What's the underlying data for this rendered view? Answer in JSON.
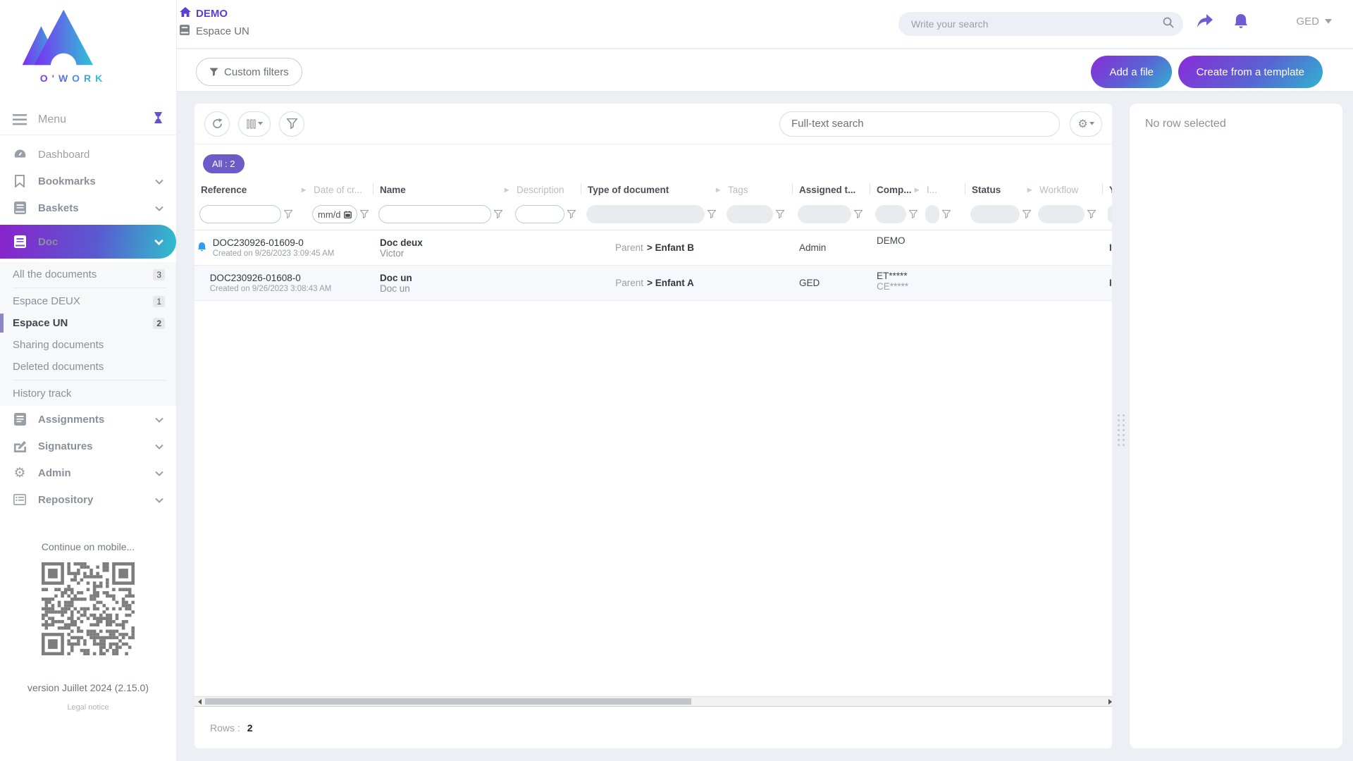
{
  "colors": {
    "accent_purple": "#6c5dd3",
    "breadcrumb_purple": "#5b3fd0",
    "gradient_start": "#8a2bd8",
    "gradient_end": "#2fb3cf",
    "badge_purple": "#6d5bc7",
    "word_icon_blue": "#2e6fd2",
    "row_bell_blue": "#2e9df2",
    "pdf_icon_red": "#e8222d"
  },
  "app": {
    "logo_text": "O'WORK"
  },
  "sidebar": {
    "menu_label": "Menu",
    "items": [
      {
        "label": "Dashboard"
      },
      {
        "label": "Bookmarks"
      },
      {
        "label": "Baskets"
      },
      {
        "label": "Doc"
      },
      {
        "label": "Assignments"
      },
      {
        "label": "Signatures"
      },
      {
        "label": "Admin"
      },
      {
        "label": "Repository"
      }
    ],
    "doc_sub": [
      {
        "label": "All the documents",
        "count": "3"
      },
      {
        "label": "Espace DEUX",
        "count": "1"
      },
      {
        "label": "Espace UN",
        "count": "2"
      },
      {
        "label": "Sharing documents",
        "count": ""
      },
      {
        "label": "Deleted documents",
        "count": ""
      },
      {
        "label": "History track",
        "count": ""
      }
    ],
    "mobile_hint": "Continue on mobile...",
    "version": "version Juillet 2024 (2.15.0)",
    "legal": "Legal notice"
  },
  "header": {
    "breadcrumb_home": "DEMO",
    "space_name": "Espace UN",
    "search_placeholder": "Write your search",
    "user": "GED",
    "custom_filters": "Custom filters",
    "add_file": "Add a file",
    "create_template": "Create from a template"
  },
  "toolbar": {
    "fulltext_placeholder": "Full-text search",
    "all_badge": "All : 2"
  },
  "table": {
    "columns": [
      {
        "label": "Reference"
      },
      {
        "label": "Date of cr..."
      },
      {
        "label": "Name"
      },
      {
        "label": "Description"
      },
      {
        "label": "Type of document"
      },
      {
        "label": "Tags"
      },
      {
        "label": "Assigned t..."
      },
      {
        "label": "Comp..."
      },
      {
        "label": "I..."
      },
      {
        "label": "Status"
      },
      {
        "label": "Workflow"
      },
      {
        "label": "Y..."
      }
    ],
    "date_filter_placeholder": "mm/d",
    "rows": [
      {
        "reference": "DOC230926-01609-0",
        "created": "Created on 9/26/2023 3:09:45 AM",
        "name": "Doc deux",
        "name_sub": "Victor",
        "type_parent": "Parent",
        "type_child": "> Enfant B",
        "assigned": "Admin",
        "company": "DEMO",
        "company_sub": "",
        "clipped": "I"
      },
      {
        "reference": "DOC230926-01608-0",
        "created": "Created on 9/26/2023 3:08:43 AM",
        "name": "Doc un",
        "name_sub": "Doc un",
        "type_parent": "Parent",
        "type_child": "> Enfant A",
        "assigned": "GED",
        "company": "ET*****",
        "company_sub": "CE*****",
        "clipped": "I"
      }
    ],
    "rows_label": "Rows :",
    "rows_count": "2"
  },
  "right_panel": {
    "empty_text": "No row selected"
  }
}
